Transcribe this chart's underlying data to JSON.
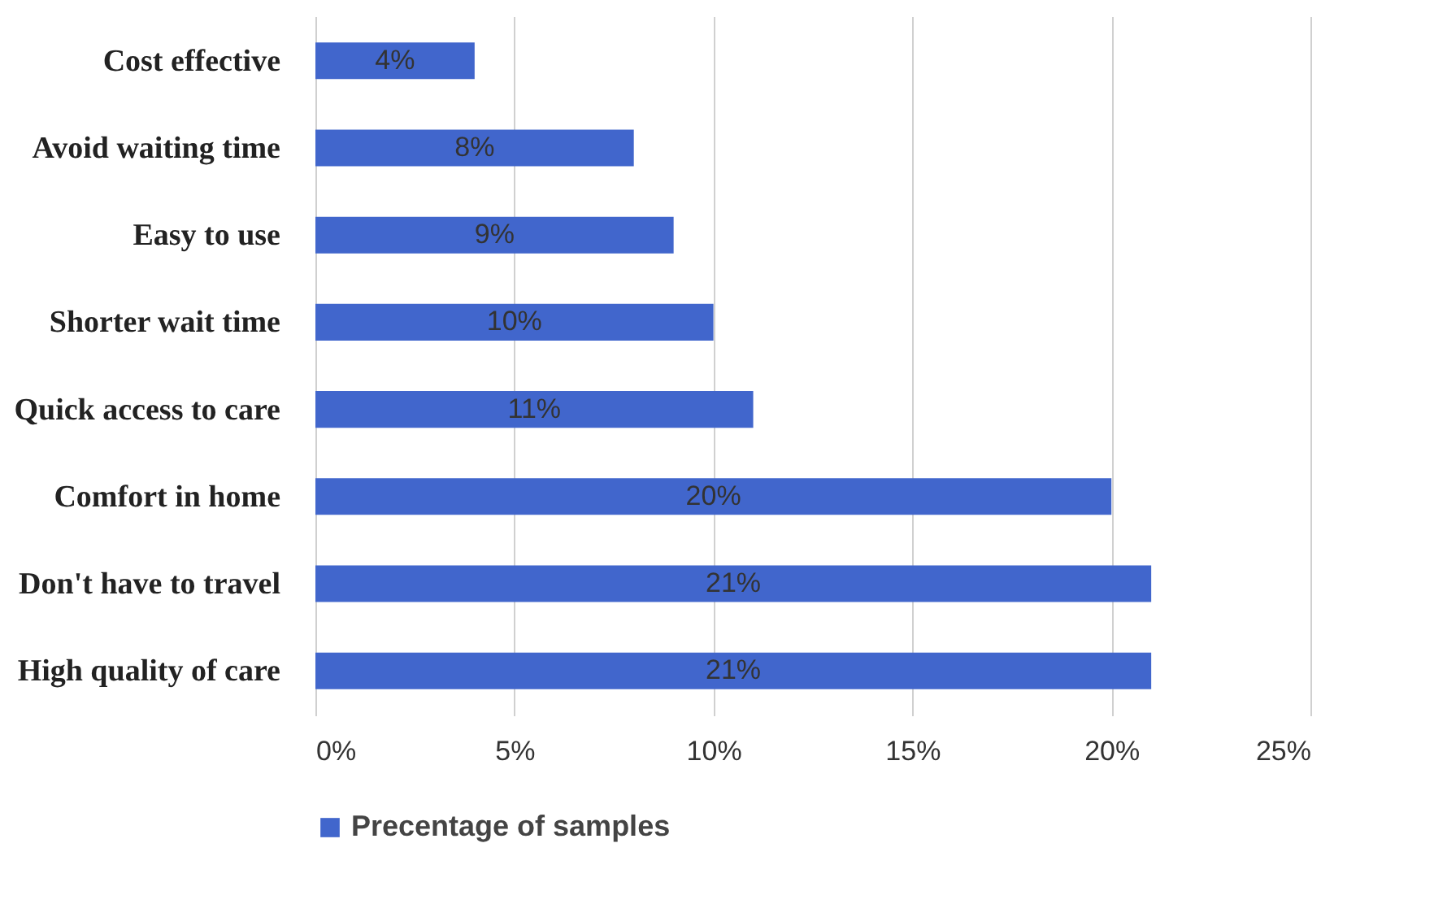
{
  "chart_data": {
    "type": "bar",
    "orientation": "horizontal",
    "categories": [
      "Cost effective",
      "Avoid waiting time",
      "Easy to use",
      "Shorter wait time",
      "Quick access to care",
      "Comfort in home",
      "Don't have to travel",
      "High quality of care"
    ],
    "series": [
      {
        "name": "Precentage of samples",
        "color": "#4166cc",
        "values": [
          4,
          8,
          9,
          10,
          11,
          20,
          21,
          21
        ],
        "value_labels": [
          "4%",
          "8%",
          "9%",
          "10%",
          "11%",
          "20%",
          "21%",
          "21%"
        ]
      }
    ],
    "xlim": [
      0,
      25
    ],
    "xticks": [
      {
        "value": 0,
        "label": "0%"
      },
      {
        "value": 5,
        "label": "5%"
      },
      {
        "value": 10,
        "label": "10%"
      },
      {
        "value": 15,
        "label": "15%"
      },
      {
        "value": 20,
        "label": "20%"
      },
      {
        "value": 25,
        "label": "25%"
      }
    ],
    "grid": "x",
    "legend": "bottom"
  }
}
